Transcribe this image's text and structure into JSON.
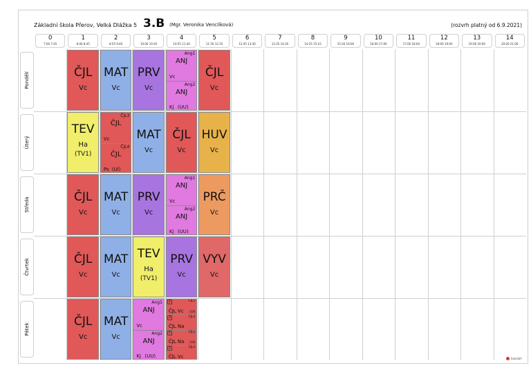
{
  "header": {
    "school": "Základní škola Přerov, Velká Dlážka 5",
    "class": "3.B",
    "teacher": "(Mgr. Veronika Venclíková)",
    "valid": "(rozvrh platný od 6.9.2021)"
  },
  "periods": [
    {
      "num": "0",
      "time": "7:00 7:45"
    },
    {
      "num": "1",
      "time": "8:00 8:45"
    },
    {
      "num": "2",
      "time": "8:55 9:40"
    },
    {
      "num": "3",
      "time": "10:00 10:45"
    },
    {
      "num": "4",
      "time": "10:55 11:40"
    },
    {
      "num": "5",
      "time": "11:50 12:35"
    },
    {
      "num": "6",
      "time": "12:45 13:30"
    },
    {
      "num": "7",
      "time": "13:35 14:20"
    },
    {
      "num": "8",
      "time": "14:25 15:10"
    },
    {
      "num": "9",
      "time": "15:20 16:00"
    },
    {
      "num": "10",
      "time": "16:00 17:00"
    },
    {
      "num": "11",
      "time": "17:00 18:00"
    },
    {
      "num": "12",
      "time": "18:00 19:00"
    },
    {
      "num": "13",
      "time": "19:00 20:00"
    },
    {
      "num": "14",
      "time": "20:00 21:00"
    }
  ],
  "days": [
    "Pondělí",
    "Úterý",
    "Středa",
    "Čtvrtek",
    "Pátek"
  ],
  "colors": {
    "cjl": "#e05858",
    "mat": "#8fb0e6",
    "prv": "#a874e0",
    "anj": "#e07ae0",
    "tev": "#f0ee6a",
    "huv": "#e8b24a",
    "prc": "#ed9a60",
    "vyv": "#e06868"
  },
  "cells": [
    {
      "day": 0,
      "col": 1,
      "subject": "ČJL",
      "teacher": "Vc",
      "color": "cjl"
    },
    {
      "day": 0,
      "col": 2,
      "subject": "MAT",
      "teacher": "Vc",
      "color": "mat"
    },
    {
      "day": 0,
      "col": 3,
      "subject": "PRV",
      "teacher": "Vc",
      "color": "prv"
    },
    {
      "day": 0,
      "col": 5,
      "subject": "ČJL",
      "teacher": "Vc",
      "color": "cjl"
    },
    {
      "day": 1,
      "col": 1,
      "subject": "TEV",
      "teacher": "Ha",
      "room": "(TV1)",
      "color": "tev"
    },
    {
      "day": 1,
      "col": 3,
      "subject": "MAT",
      "teacher": "Vc",
      "color": "mat"
    },
    {
      "day": 1,
      "col": 4,
      "subject": "ČJL",
      "teacher": "Vc",
      "color": "cjl"
    },
    {
      "day": 1,
      "col": 5,
      "subject": "HUV",
      "teacher": "Vc",
      "color": "huv"
    },
    {
      "day": 2,
      "col": 1,
      "subject": "ČJL",
      "teacher": "Vc",
      "color": "cjl"
    },
    {
      "day": 2,
      "col": 2,
      "subject": "MAT",
      "teacher": "Vc",
      "color": "mat"
    },
    {
      "day": 2,
      "col": 3,
      "subject": "PRV",
      "teacher": "Vc",
      "color": "prv"
    },
    {
      "day": 2,
      "col": 5,
      "subject": "PRČ",
      "teacher": "Vc",
      "color": "prc"
    },
    {
      "day": 3,
      "col": 1,
      "subject": "ČJL",
      "teacher": "Vc",
      "color": "cjl"
    },
    {
      "day": 3,
      "col": 2,
      "subject": "MAT",
      "teacher": "Vc",
      "color": "mat"
    },
    {
      "day": 3,
      "col": 3,
      "subject": "TEV",
      "teacher": "Ha",
      "room": "(TV1)",
      "color": "tev"
    },
    {
      "day": 3,
      "col": 4,
      "subject": "PRV",
      "teacher": "Vc",
      "color": "prv"
    },
    {
      "day": 3,
      "col": 5,
      "subject": "VYV",
      "teacher": "Vc",
      "color": "vyv"
    },
    {
      "day": 4,
      "col": 1,
      "subject": "ČJL",
      "teacher": "Vc",
      "color": "cjl"
    },
    {
      "day": 4,
      "col": 2,
      "subject": "MAT",
      "teacher": "Vc",
      "color": "mat"
    }
  ],
  "splits": [
    {
      "day": 0,
      "col": 4,
      "color": "anj",
      "halves": [
        {
          "group": "Ang1",
          "subject": "ANJ",
          "teacher": "Vc",
          "room": ""
        },
        {
          "group": "Ang2",
          "subject": "ANJ",
          "teacher": "Kj",
          "room": "(UU)"
        }
      ]
    },
    {
      "day": 1,
      "col": 2,
      "color": "cjl",
      "halves": [
        {
          "group": "ČJL3",
          "subject": "ČJL",
          "teacher": "Vc",
          "room": ""
        },
        {
          "group": "ČJL4",
          "subject": "ČJL",
          "teacher": "Ps",
          "room": "(Ul)"
        }
      ]
    },
    {
      "day": 2,
      "col": 4,
      "color": "anj",
      "halves": [
        {
          "group": "Ang1",
          "subject": "ANJ",
          "teacher": "Vc",
          "room": ""
        },
        {
          "group": "Ang2",
          "subject": "ANJ",
          "teacher": "Kj",
          "room": "(UU)"
        }
      ]
    },
    {
      "day": 4,
      "col": 3,
      "color": "anj",
      "halves": [
        {
          "group": "Ang1",
          "subject": "ANJ",
          "teacher": "Vc",
          "room": ""
        },
        {
          "group": "Ang2",
          "subject": "ANJ",
          "teacher": "Kj",
          "room": "(UU)"
        }
      ]
    }
  ],
  "quads": [
    {
      "day": 4,
      "col": 4,
      "color": "cjl",
      "items": [
        {
          "num": "1",
          "group": "ČJL1",
          "text": "ČJL Vc",
          "week": "(L8)"
        },
        {
          "num": "2",
          "group": "ČJL2",
          "text": "ČJL Na",
          "week": ""
        },
        {
          "num": "1",
          "group": "ČJL1",
          "text": "ČJL Na",
          "week": "(L8)"
        },
        {
          "num": "2",
          "group": "ČJL2",
          "text": "ČJL Vc",
          "week": ""
        }
      ]
    }
  ],
  "footer": {
    "logo": "bakaláři"
  }
}
